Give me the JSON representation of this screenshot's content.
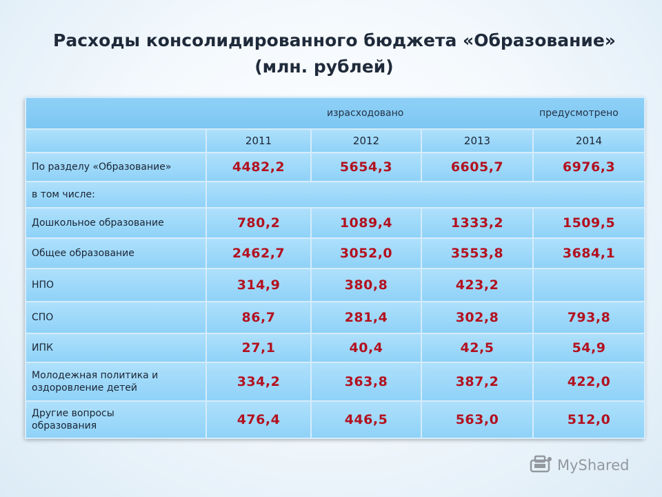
{
  "title": {
    "line1": "Расходы консолидированного бюджета «Образование»",
    "line2": "(млн. рублей)"
  },
  "table": {
    "header_spent": "израсходовано",
    "header_plan": "предусмотрено",
    "years": [
      "2011",
      "2012",
      "2013",
      "2014"
    ],
    "rows": [
      {
        "label": "По разделу «Образование»",
        "values": [
          "4482,2",
          "5654,3",
          "6605,7",
          "6976,3"
        ]
      },
      {
        "label": "в том числе:",
        "values": []
      },
      {
        "label": "Дошкольное образование",
        "values": [
          "780,2",
          "1089,4",
          "1333,2",
          "1509,5"
        ]
      },
      {
        "label": "Общее образование",
        "values": [
          "2462,7",
          "3052,0",
          "3553,8",
          "3684,1"
        ]
      },
      {
        "label": "НПО",
        "values": [
          "314,9",
          "380,8",
          "423,2",
          ""
        ]
      },
      {
        "label": "СПО",
        "values": [
          "86,7",
          "281,4",
          "302,8",
          "793,8"
        ]
      },
      {
        "label": "ИПК",
        "values": [
          "27,1",
          "40,4",
          "42,5",
          "54,9"
        ]
      },
      {
        "label_line1": "Молодежная политика и",
        "label_line2": "оздоровление детей",
        "values": [
          "334,2",
          "363,8",
          "387,2",
          "422,0"
        ]
      },
      {
        "label_line1": "Другие вопросы",
        "label_line2": "образования",
        "values": [
          "476,4",
          "446,5",
          "563,0",
          "512,0"
        ]
      }
    ]
  },
  "watermark": {
    "text": "MyShared",
    "icon": "myshared-logo-icon"
  }
}
